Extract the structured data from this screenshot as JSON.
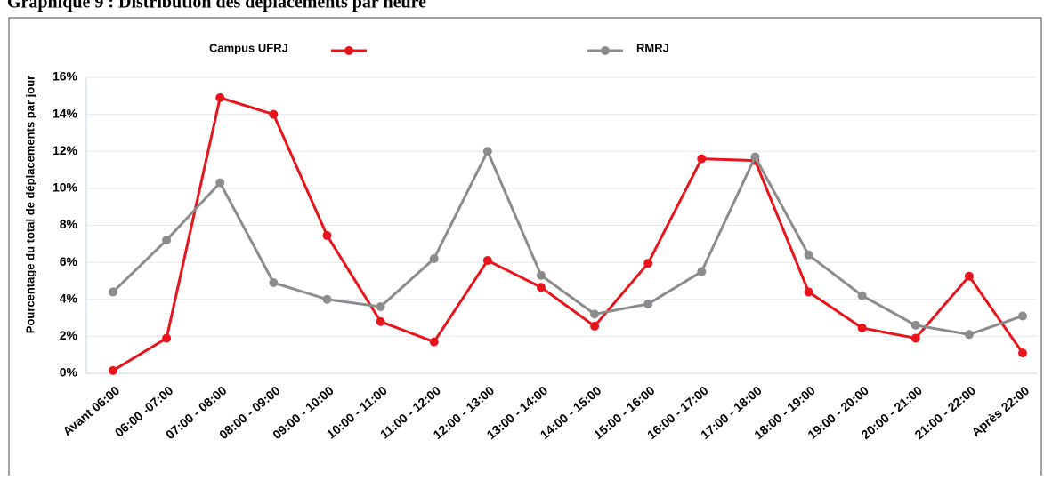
{
  "title": "Graphique 9 : Distribution des déplacements par heure",
  "chart_data": {
    "type": "line",
    "ylabel": "Pourcentage du total de déplacements par jour",
    "categories": [
      "Avant  06:00",
      "06:00 -07:00",
      "07:00 - 08:00",
      "08:00 - 09:00",
      "09:00 - 10:00",
      "10:00 - 11:00",
      "11:00 - 12:00",
      "12:00 - 13:00",
      "13:00 - 14:00",
      "14:00 - 15:00",
      "15:00 - 16:00",
      "16:00 - 17:00",
      "17:00 - 18:00",
      "18:00 - 19:00",
      "19:00 - 20:00",
      "20:00 - 21:00",
      "21:00 - 22:00",
      "Après  22:00"
    ],
    "series": [
      {
        "name": "Campus UFRJ",
        "color": "#e8141b",
        "values": [
          0.15,
          1.9,
          14.9,
          14.0,
          7.45,
          2.8,
          1.7,
          6.1,
          4.65,
          2.55,
          5.95,
          11.6,
          11.5,
          4.4,
          2.45,
          1.9,
          5.25,
          1.1
        ]
      },
      {
        "name": "RMRJ",
        "color": "#8c8c8c",
        "values": [
          4.4,
          7.2,
          10.3,
          4.9,
          4.0,
          3.6,
          6.2,
          12.0,
          5.3,
          3.2,
          3.75,
          5.5,
          11.7,
          6.4,
          4.2,
          2.6,
          2.1,
          3.1
        ]
      }
    ],
    "ylim": [
      0,
      16
    ],
    "yticks": [
      {
        "value": 0,
        "label": "0%"
      },
      {
        "value": 2,
        "label": "2%"
      },
      {
        "value": 4,
        "label": "4%"
      },
      {
        "value": 6,
        "label": "6%"
      },
      {
        "value": 8,
        "label": "8%"
      },
      {
        "value": 10,
        "label": "10%"
      },
      {
        "value": 12,
        "label": "12%"
      },
      {
        "value": 14,
        "label": "14%"
      },
      {
        "value": 16,
        "label": "16%"
      }
    ],
    "grid": true
  }
}
